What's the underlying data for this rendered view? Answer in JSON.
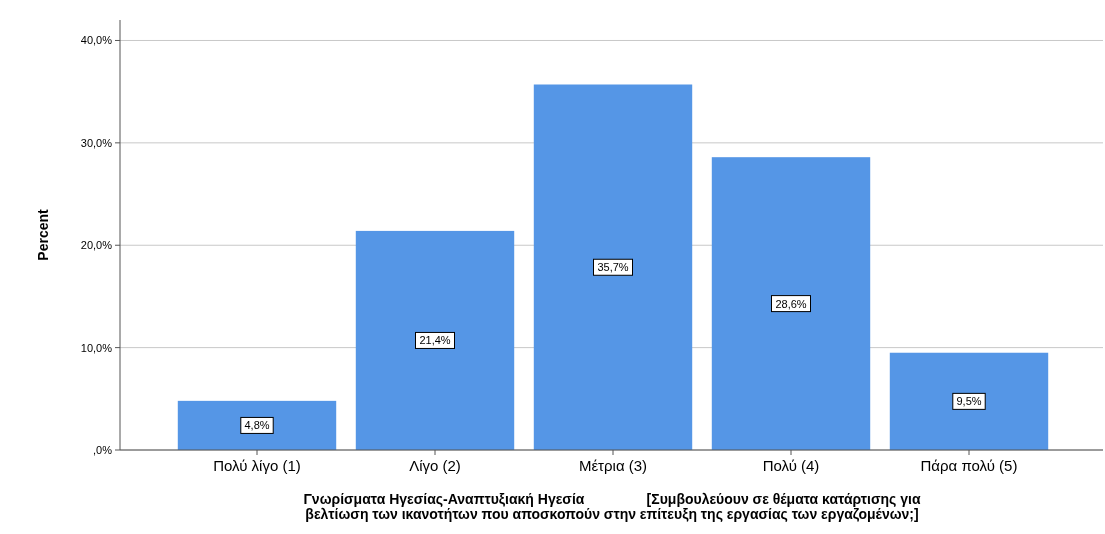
{
  "chart_data": {
    "type": "bar",
    "ylabel": "Percent",
    "xlabel": "Γνωρίσματα Ηγεσίας-Αναπτυξιακή Ηγεσία                [Συμβουλεύουν σε θέματα κατάρτισης για\nβελτίωση των ικανοτήτων που αποσκοπούν στην επίτευξη της εργασίας των εργαζομένων;]",
    "categories": [
      "Πολύ λίγο (1)",
      "Λίγο (2)",
      "Μέτρια (3)",
      "Πολύ (4)",
      "Πάρα πολύ (5)"
    ],
    "values": [
      4.8,
      21.4,
      35.7,
      28.6,
      9.5
    ],
    "value_labels": [
      "4,8%",
      "21,4%",
      "35,7%",
      "28,6%",
      "9,5%"
    ],
    "color": "#5596e6",
    "ylim": [
      0,
      42
    ],
    "yticks": [
      {
        "value": 0,
        "label": ",0%"
      },
      {
        "value": 10,
        "label": "10,0%"
      },
      {
        "value": 20,
        "label": "20,0%"
      },
      {
        "value": 30,
        "label": "30,0%"
      },
      {
        "value": 40,
        "label": "40,0%"
      }
    ],
    "grid": "y"
  }
}
